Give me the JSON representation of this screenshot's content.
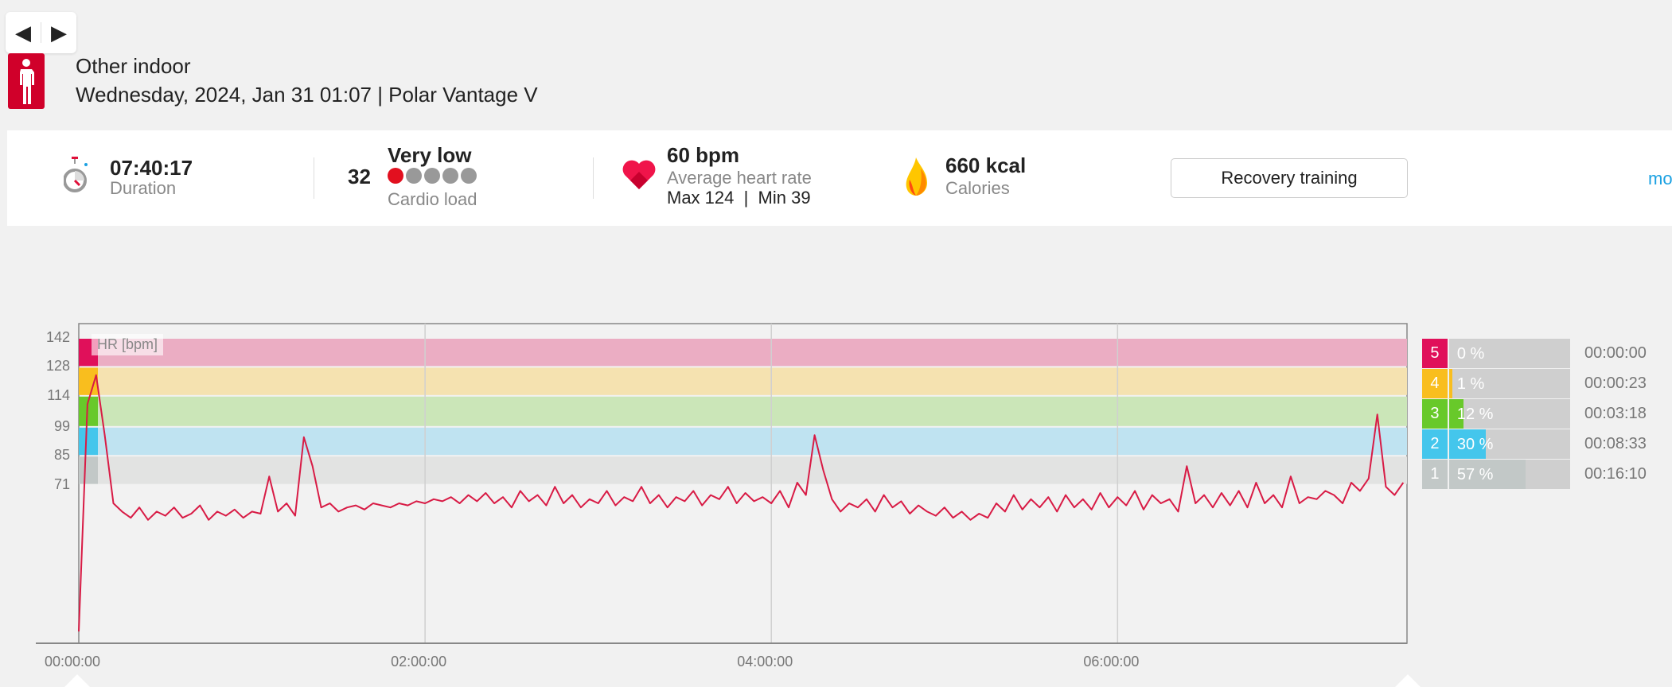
{
  "nav": {
    "prev_icon": "triangle-left-icon",
    "next_icon": "triangle-right-icon",
    "prev": "◀",
    "next": "▶"
  },
  "header": {
    "sport": "Other indoor",
    "subtitle": "Wednesday, 2024, Jan 31 01:07 | Polar Vantage V",
    "sport_icon": "person-standing-icon"
  },
  "summary": {
    "duration": {
      "value": "07:40:17",
      "label": "Duration"
    },
    "cardio": {
      "value": "32",
      "level": "Very low",
      "label": "Cardio load",
      "dots_filled": 1,
      "dots_total": 5
    },
    "hr": {
      "value": "60 bpm",
      "label": "Average heart rate",
      "maxmin": "Max 124  |  Min 39"
    },
    "calories": {
      "value": "660 kcal",
      "label": "Calories"
    },
    "training_type": "Recovery training",
    "more_link": "mo"
  },
  "colors": {
    "accent": "#d0002a",
    "line": "#d81b45",
    "link": "#1ba1e2"
  },
  "chart_data": {
    "type": "line",
    "ylabel": "HR [bpm]",
    "y_ticks": [
      142,
      128,
      114,
      99,
      85,
      71
    ],
    "x_ticks": [
      "00:00:00",
      "02:00:00",
      "04:00:00",
      "06:00:00"
    ],
    "x_range_min": [
      0,
      460.3
    ],
    "interval_min": 3,
    "zones": [
      {
        "zone": "5",
        "lo": 128,
        "hi": 142,
        "pct": "0 %",
        "pct_value": 0,
        "time": "00:00:00",
        "color": "#e0105a",
        "band": "#ebadc3"
      },
      {
        "zone": "4",
        "lo": 114,
        "hi": 128,
        "pct": "1 %",
        "pct_value": 1,
        "time": "00:00:23",
        "color": "#f9be1e",
        "band": "#f5e2b0"
      },
      {
        "zone": "3",
        "lo": 99,
        "hi": 114,
        "pct": "12 %",
        "pct_value": 12,
        "time": "00:03:18",
        "color": "#68c92a",
        "band": "#cbe6b8"
      },
      {
        "zone": "2",
        "lo": 85,
        "hi": 99,
        "pct": "30 %",
        "pct_value": 30,
        "time": "00:08:33",
        "color": "#44c6ec",
        "band": "#bfe3f1"
      },
      {
        "zone": "1",
        "lo": 71,
        "hi": 85,
        "pct": "57 %",
        "pct_value": 57,
        "time": "00:16:10",
        "color": "#c2c8c7",
        "band": "#e2e3e2"
      }
    ],
    "hr_values": [
      0,
      110,
      124,
      95,
      62,
      58,
      55,
      60,
      54,
      58,
      56,
      60,
      55,
      57,
      61,
      54,
      58,
      56,
      59,
      55,
      58,
      57,
      75,
      58,
      62,
      56,
      94,
      80,
      60,
      62,
      58,
      60,
      61,
      59,
      62,
      61,
      60,
      62,
      61,
      63,
      62,
      64,
      63,
      65,
      62,
      66,
      63,
      67,
      62,
      65,
      60,
      68,
      63,
      66,
      61,
      70,
      62,
      66,
      60,
      64,
      62,
      68,
      61,
      65,
      63,
      70,
      62,
      66,
      60,
      65,
      63,
      68,
      61,
      66,
      64,
      70,
      62,
      67,
      63,
      65,
      62,
      68,
      60,
      72,
      66,
      95,
      78,
      64,
      58,
      62,
      60,
      64,
      58,
      66,
      60,
      63,
      57,
      61,
      58,
      56,
      60,
      55,
      58,
      54,
      57,
      55,
      62,
      58,
      66,
      59,
      64,
      60,
      65,
      58,
      66,
      60,
      64,
      59,
      67,
      60,
      65,
      61,
      68,
      59,
      66,
      62,
      64,
      58,
      80,
      62,
      66,
      60,
      67,
      61,
      68,
      60,
      72,
      62,
      66,
      60,
      75,
      62,
      65,
      64,
      68,
      66,
      62,
      72,
      68,
      74,
      105,
      70,
      66,
      72
    ]
  }
}
